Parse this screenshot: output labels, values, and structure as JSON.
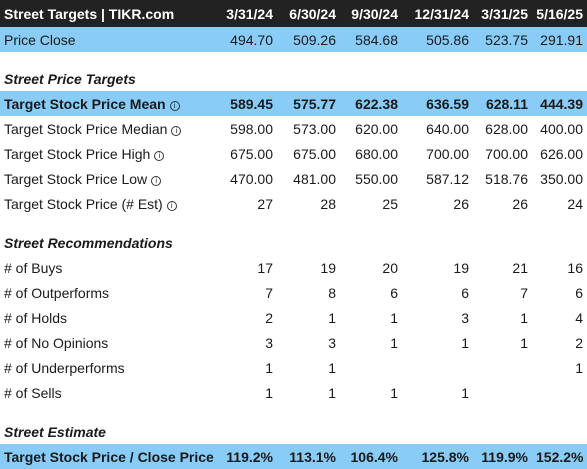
{
  "header": {
    "title": "Street Targets | TIKR.com",
    "periods": [
      "3/31/24",
      "6/30/24",
      "9/30/24",
      "12/31/24",
      "3/31/25",
      "5/16/25"
    ]
  },
  "price_close": {
    "label": "Price Close",
    "values": [
      "494.70",
      "509.26",
      "584.68",
      "505.86",
      "523.75",
      "291.91"
    ]
  },
  "sections": {
    "targets": {
      "title": "Street Price Targets",
      "rows": [
        {
          "label": "Target Stock Price Mean",
          "values": [
            "589.45",
            "575.77",
            "622.38",
            "636.59",
            "628.11",
            "444.39"
          ]
        },
        {
          "label": "Target Stock Price Median",
          "values": [
            "598.00",
            "573.00",
            "620.00",
            "640.00",
            "628.00",
            "400.00"
          ]
        },
        {
          "label": "Target Stock Price High",
          "values": [
            "675.00",
            "675.00",
            "680.00",
            "700.00",
            "700.00",
            "626.00"
          ]
        },
        {
          "label": "Target Stock Price Low",
          "values": [
            "470.00",
            "481.00",
            "550.00",
            "587.12",
            "518.76",
            "350.00"
          ]
        },
        {
          "label": "Target Stock Price (# Est)",
          "values": [
            "27",
            "28",
            "25",
            "26",
            "26",
            "24"
          ]
        }
      ]
    },
    "recommendations": {
      "title": "Street Recommendations",
      "rows": [
        {
          "label": "# of Buys",
          "values": [
            "17",
            "19",
            "20",
            "19",
            "21",
            "16"
          ]
        },
        {
          "label": "# of Outperforms",
          "values": [
            "7",
            "8",
            "6",
            "6",
            "7",
            "6"
          ]
        },
        {
          "label": "# of Holds",
          "values": [
            "2",
            "1",
            "1",
            "3",
            "1",
            "4"
          ]
        },
        {
          "label": "# of No Opinions",
          "values": [
            "3",
            "3",
            "1",
            "1",
            "1",
            "2"
          ]
        },
        {
          "label": "# of Underperforms",
          "values": [
            "1",
            "1",
            "",
            "",
            "",
            "1"
          ]
        },
        {
          "label": "# of Sells",
          "values": [
            "1",
            "1",
            "1",
            "1",
            "",
            ""
          ]
        }
      ]
    },
    "estimate": {
      "title": "Street Estimate",
      "rows": [
        {
          "label": "Target Stock Price / Close Price",
          "values": [
            "119.2%",
            "113.1%",
            "106.4%",
            "125.8%",
            "119.9%",
            "152.2%"
          ]
        }
      ]
    }
  },
  "icons": {
    "info": "info-icon"
  },
  "colors": {
    "header_bg": "#222222",
    "highlight_bg": "#88ccf7"
  }
}
